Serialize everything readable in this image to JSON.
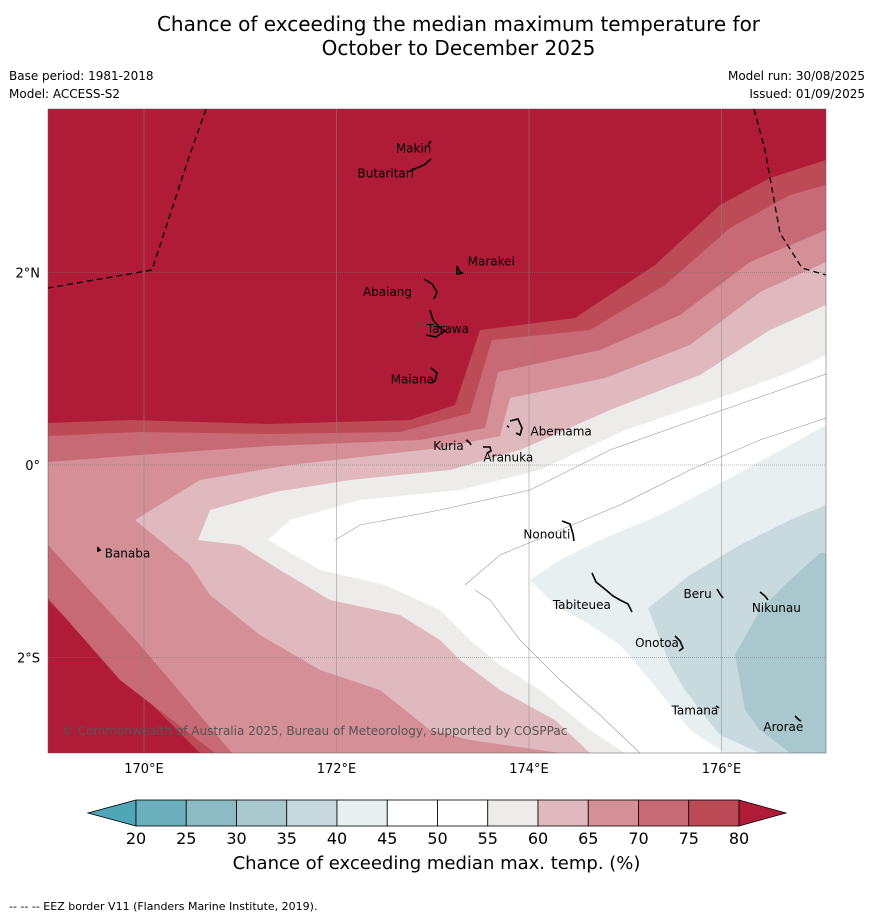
{
  "title_line1": "Chance of exceeding the median maximum temperature for",
  "title_line2": "October to December 2025",
  "meta_left": {
    "base_period": "Base period: 1981-2018",
    "model": "Model: ACCESS-S2"
  },
  "meta_right": {
    "model_run": "Model run: 30/08/2025",
    "issued": "Issued: 01/09/2025"
  },
  "copyright": "© Commonwealth of Australia 2025, Bureau of Meteorology, supported by COSPPac",
  "lon_labels": [
    "170°E",
    "172°E",
    "174°E",
    "176°E"
  ],
  "lat_labels": [
    "2°N",
    "0°",
    "2°S"
  ],
  "places": [
    {
      "name": "Makin",
      "lon": 172.98,
      "lat": 3.3
    },
    {
      "name": "Butaritari",
      "lon": 172.79,
      "lat": 3.07
    },
    {
      "name": "Marakei",
      "lon": 173.3,
      "lat": 2.01
    },
    {
      "name": "Abaiang",
      "lon": 172.95,
      "lat": 1.84
    },
    {
      "name": "Tarawa",
      "lon": 172.98,
      "lat": 1.35
    },
    {
      "name": "Maiana",
      "lon": 173.02,
      "lat": 0.93
    },
    {
      "name": "Abemama",
      "lon": 173.87,
      "lat": 0.4
    },
    {
      "name": "Kuria",
      "lon": 173.41,
      "lat": 0.23
    },
    {
      "name": "Aranuka",
      "lon": 173.62,
      "lat": 0.18
    },
    {
      "name": "Banaba",
      "lon": 169.54,
      "lat": -0.87
    },
    {
      "name": "Nonouti",
      "lon": 174.42,
      "lat": -0.67
    },
    {
      "name": "Tabiteuea",
      "lon": 174.85,
      "lat": -1.4
    },
    {
      "name": "Beru",
      "lon": 175.99,
      "lat": -1.33
    },
    {
      "name": "Nikunau",
      "lon": 176.45,
      "lat": -1.36
    },
    {
      "name": "Onotoa",
      "lon": 175.57,
      "lat": -1.83
    },
    {
      "name": "Tamana",
      "lon": 175.98,
      "lat": -2.5
    },
    {
      "name": "Arorae",
      "lon": 176.83,
      "lat": -2.63
    }
  ],
  "colorbar": {
    "ticks": [
      "20",
      "25",
      "30",
      "35",
      "40",
      "45",
      "50",
      "55",
      "60",
      "65",
      "70",
      "75",
      "80"
    ],
    "colors": [
      "#4ea6b6",
      "#6cb0bd",
      "#8dbbc3",
      "#a9c8ce",
      "#c9dadf",
      "#e8eff1",
      "#ffffff",
      "#ffffff",
      "#eeecea",
      "#e0b9be",
      "#d48f97",
      "#c86a76",
      "#bd4a57",
      "#b01c38"
    ],
    "label": "Chance of exceeding median max. temp. (%)"
  },
  "footnote": "--  --  -- EEZ border V11 (Flanders Marine Institute, 2019)."
}
